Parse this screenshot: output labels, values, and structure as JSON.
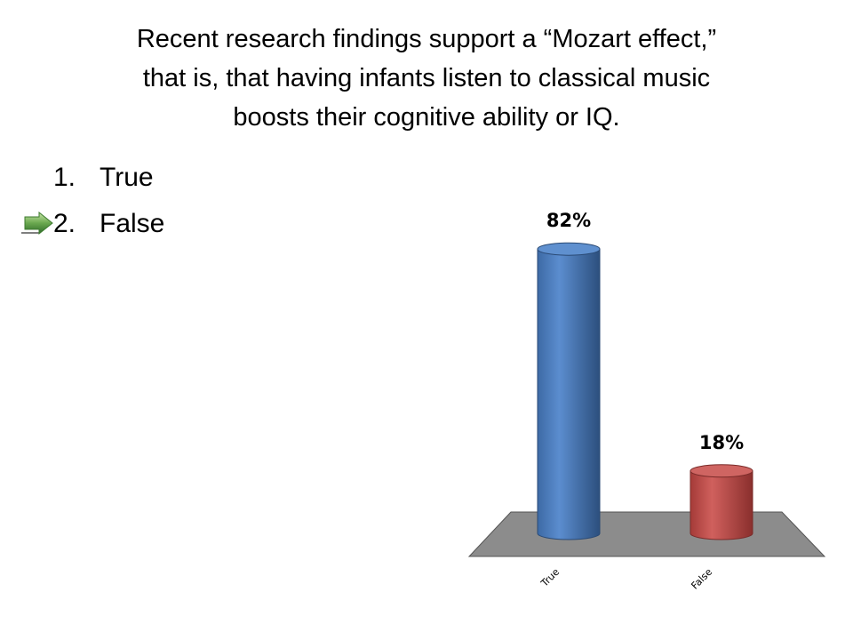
{
  "question": {
    "lines": [
      "Recent research findings support a “Mozart effect,”",
      "that is, that having infants listen to classical music",
      "boosts their cognitive ability or IQ."
    ]
  },
  "options": [
    {
      "number": "1.",
      "label": "True",
      "correct": false
    },
    {
      "number": "2.",
      "label": "False",
      "correct": true
    }
  ],
  "correct_marker_icon": "green-arrow-icon",
  "chart_data": {
    "type": "bar",
    "categories": [
      "True",
      "False"
    ],
    "values": [
      82,
      18
    ],
    "value_labels": [
      "82%",
      "18%"
    ],
    "unit": "%",
    "ylim": [
      0,
      100
    ],
    "style": "3d-cylinder",
    "grid": false,
    "legend": "none",
    "colors": {
      "True": "#4a7ebb",
      "False": "#be4b48",
      "floor": "#8c8c8c"
    }
  }
}
